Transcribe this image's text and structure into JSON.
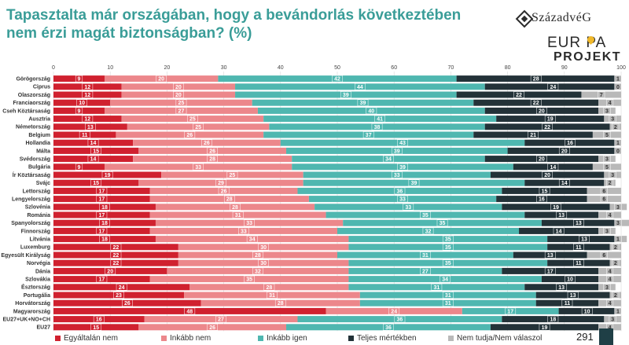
{
  "title": "Tapasztalta már országában, hogy a bevándorlás következtében nem érzi magát biztonságban? (%)",
  "logo": {
    "brand": "SzázadvéG",
    "line1": "EUR PA",
    "line2": "PROJEKT"
  },
  "page_number": "291",
  "colors": {
    "egyaltalan": "#d0212f",
    "inkabb_nem": "#ec878b",
    "inkabb_igen": "#4fb7b0",
    "teljes": "#233238",
    "nem_tudja": "#b9b9b9"
  },
  "chart_data": {
    "type": "bar",
    "orientation": "horizontal",
    "stacked": true,
    "xlim": [
      0,
      100
    ],
    "xticks": [
      0,
      10,
      20,
      30,
      40,
      50,
      60,
      70,
      80,
      90,
      100
    ],
    "grid": true,
    "legend_position": "bottom",
    "categories": [
      "Görögország",
      "Ciprus",
      "Olaszország",
      "Franciaország",
      "Cseh Köztársaság",
      "Ausztria",
      "Németország",
      "Belgium",
      "Hollandia",
      "Málta",
      "Svédország",
      "Bulgária",
      "Ír Köztársaság",
      "Svájc",
      "Lettország",
      "Lengyelország",
      "Szlovénia",
      "Románia",
      "Spanyolország",
      "Finnország",
      "Litvánia",
      "Luxemburg",
      "Egyesült Királyság",
      "Norvégia",
      "Dánia",
      "Szlovákia",
      "Észtország",
      "Portugália",
      "Horvátország",
      "Magyarország",
      "EU27+UK+NO+CH",
      "EU27"
    ],
    "series": [
      {
        "name": "Egyáltalán nem",
        "color": "#d0212f",
        "values": [
          9,
          12,
          12,
          10,
          9,
          12,
          13,
          11,
          14,
          15,
          14,
          9,
          19,
          15,
          17,
          17,
          18,
          17,
          18,
          17,
          18,
          22,
          22,
          22,
          20,
          17,
          24,
          23,
          26,
          48,
          16,
          15
        ]
      },
      {
        "name": "Inkább nem",
        "color": "#ec878b",
        "values": [
          20,
          20,
          20,
          25,
          27,
          25,
          25,
          26,
          26,
          26,
          28,
          33,
          25,
          29,
          26,
          28,
          28,
          31,
          33,
          33,
          34,
          30,
          28,
          30,
          32,
          35,
          28,
          31,
          28,
          24,
          27,
          26
        ]
      },
      {
        "name": "Inkább igen",
        "color": "#4fb7b0",
        "values": [
          42,
          44,
          39,
          39,
          40,
          41,
          38,
          37,
          43,
          39,
          34,
          39,
          33,
          39,
          36,
          33,
          33,
          35,
          35,
          32,
          35,
          35,
          31,
          35,
          27,
          34,
          31,
          31,
          31,
          17,
          36,
          36
        ]
      },
      {
        "name": "Teljes mértékben",
        "color": "#233238",
        "values": [
          28,
          24,
          22,
          22,
          20,
          19,
          22,
          21,
          16,
          20,
          20,
          14,
          20,
          14,
          15,
          16,
          19,
          13,
          13,
          14,
          13,
          11,
          13,
          11,
          17,
          10,
          13,
          13,
          11,
          10,
          18,
          19
        ]
      },
      {
        "name": "Nem tudja/Nem válaszol",
        "color": "#b9b9b9",
        "values": [
          1,
          0,
          7,
          4,
          3,
          3,
          2,
          5,
          1,
          0,
          3,
          5,
          3,
          2,
          6,
          6,
          3,
          4,
          3,
          3,
          1,
          2,
          6,
          2,
          4,
          4,
          3,
          2,
          4,
          1,
          3,
          4
        ]
      }
    ]
  }
}
